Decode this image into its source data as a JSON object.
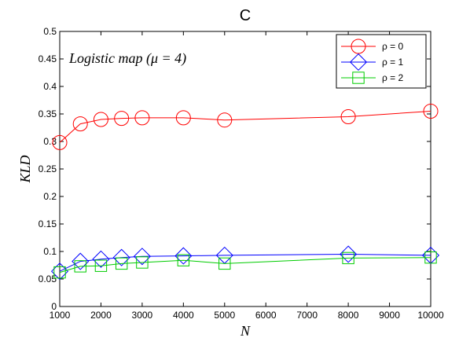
{
  "chart_data": {
    "type": "line",
    "title": "C",
    "xlabel": "N",
    "ylabel": "KLD",
    "annotation": "Logistic map (μ = 4)",
    "x": [
      1000,
      1500,
      2000,
      2500,
      3000,
      4000,
      5000,
      8000,
      10000
    ],
    "xlim": [
      1000,
      10000
    ],
    "ylim": [
      0,
      0.5
    ],
    "xticks": [
      "1000",
      "2000",
      "3000",
      "4000",
      "5000",
      "6000",
      "7000",
      "8000",
      "9000",
      "10000"
    ],
    "yticks": [
      "0",
      "0.05",
      "0.1",
      "0.15",
      "0.2",
      "0.25",
      "0.3",
      "0.35",
      "0.4",
      "0.45",
      "0.5"
    ],
    "grid": false,
    "legend_position": "top-right",
    "series": [
      {
        "name": "ρ = 0",
        "color": "#ff0000",
        "marker": "circle",
        "values": [
          0.298,
          0.332,
          0.34,
          0.342,
          0.343,
          0.343,
          0.339,
          0.345,
          0.355
        ]
      },
      {
        "name": "ρ = 1",
        "color": "#0000ff",
        "marker": "diamond",
        "values": [
          0.064,
          0.082,
          0.086,
          0.089,
          0.091,
          0.092,
          0.093,
          0.095,
          0.093
        ]
      },
      {
        "name": "ρ = 2",
        "color": "#00cc00",
        "marker": "square",
        "values": [
          0.062,
          0.073,
          0.074,
          0.078,
          0.08,
          0.084,
          0.078,
          0.088,
          0.089
        ]
      }
    ]
  }
}
